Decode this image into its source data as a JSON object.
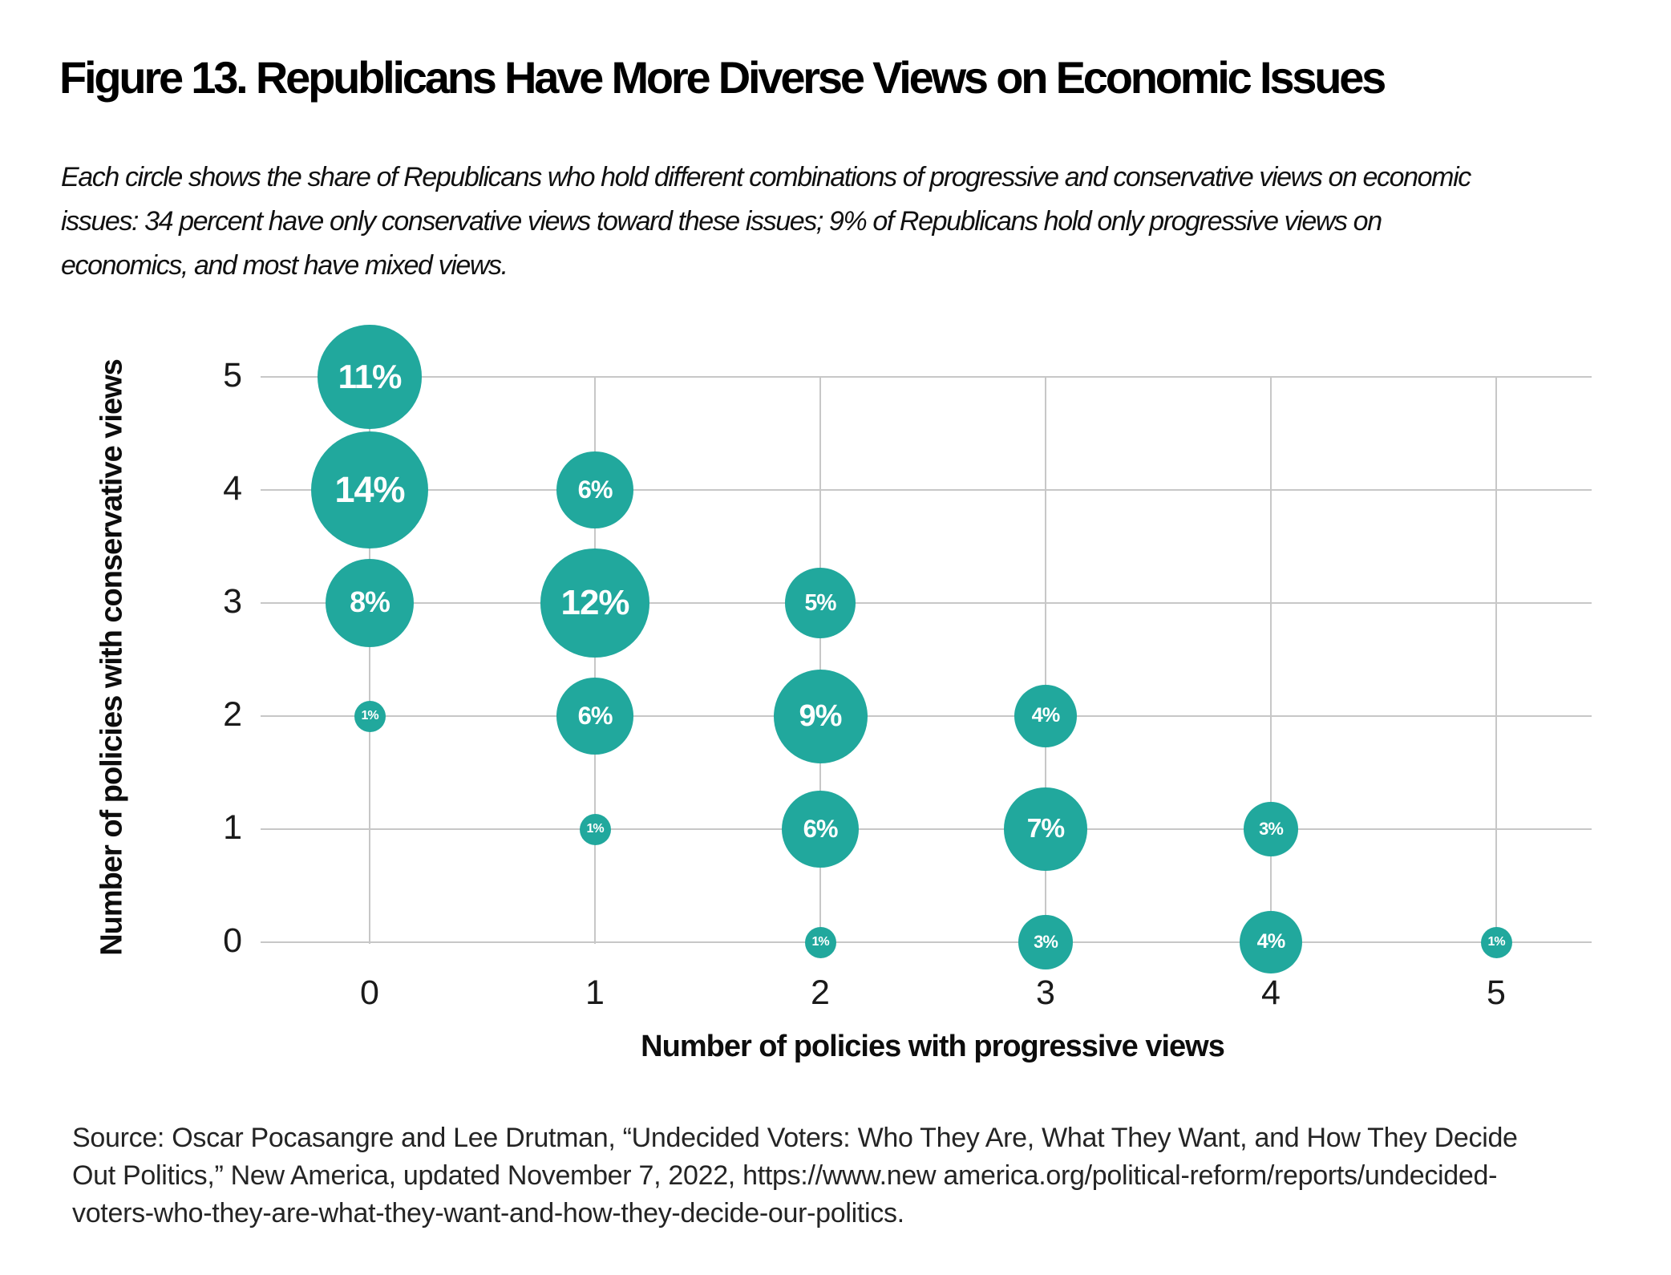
{
  "figure": {
    "title": "Figure 13. Republicans Have More Diverse Views on Economic Issues",
    "subtitle_lines": [
      "Each circle shows the share of Republicans who hold different combinations of progressive and conservative views on economic",
      "issues: 34 percent have only conservative views toward these issues; 9% of Republicans hold only progressive views on",
      "economics, and most have mixed views."
    ],
    "source_lines": [
      "Source: Oscar Pocasangre and Lee Drutman, “Undecided Voters: Who They Are, What They Want, and How They Decide",
      "Out Politics,” New America, updated November 7, 2022, https://www.new america.org/political-reform/reports/undecided-",
      "voters-who-they-are-what-they-want-and-how-they-decide-our-politics."
    ]
  },
  "chart_data": {
    "type": "scatter",
    "subtype": "bubble",
    "title": "Figure 13. Republicans Have More Diverse Views on Economic Issues",
    "xlabel": "Number of policies with progressive views",
    "ylabel": "Number of policies with conservative views",
    "x_ticks": [
      "0",
      "1",
      "2",
      "3",
      "4",
      "5"
    ],
    "y_ticks": [
      "5",
      "4",
      "3",
      "2",
      "1",
      "0"
    ],
    "xlim": [
      0,
      5
    ],
    "ylim": [
      0,
      5
    ],
    "grid": true,
    "legend": false,
    "bubble_color": "#21A89D",
    "bubble_label_color": "#FFFFFF",
    "gridline_color": "#C7C7C7",
    "size_encoding": "bubble area proportional to percent value",
    "points": [
      {
        "x": 0,
        "y": 5,
        "value": 11,
        "label": "11%"
      },
      {
        "x": 0,
        "y": 4,
        "value": 14,
        "label": "14%"
      },
      {
        "x": 0,
        "y": 3,
        "value": 8,
        "label": "8%"
      },
      {
        "x": 0,
        "y": 2,
        "value": 1,
        "label": "1%"
      },
      {
        "x": 1,
        "y": 4,
        "value": 6,
        "label": "6%"
      },
      {
        "x": 1,
        "y": 3,
        "value": 12,
        "label": "12%"
      },
      {
        "x": 1,
        "y": 2,
        "value": 6,
        "label": "6%"
      },
      {
        "x": 1,
        "y": 1,
        "value": 1,
        "label": "1%"
      },
      {
        "x": 2,
        "y": 3,
        "value": 5,
        "label": "5%"
      },
      {
        "x": 2,
        "y": 2,
        "value": 9,
        "label": "9%"
      },
      {
        "x": 2,
        "y": 1,
        "value": 6,
        "label": "6%"
      },
      {
        "x": 2,
        "y": 0,
        "value": 1,
        "label": "1%"
      },
      {
        "x": 3,
        "y": 2,
        "value": 4,
        "label": "4%"
      },
      {
        "x": 3,
        "y": 1,
        "value": 7,
        "label": "7%"
      },
      {
        "x": 3,
        "y": 0,
        "value": 3,
        "label": "3%"
      },
      {
        "x": 4,
        "y": 1,
        "value": 3,
        "label": "3%"
      },
      {
        "x": 4,
        "y": 0,
        "value": 4,
        "label": "4%"
      },
      {
        "x": 5,
        "y": 0,
        "value": 1,
        "label": "1%"
      }
    ]
  }
}
